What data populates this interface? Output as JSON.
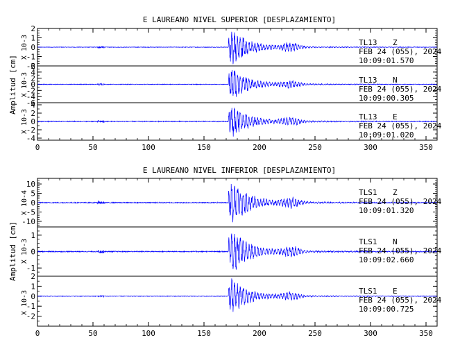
{
  "chart_data": [
    {
      "type": "line",
      "title": "E LAUREANO NIVEL SUPERIOR [DESPLAZAMIENTO]",
      "ylabel": "Amplitud [cm]",
      "xlim": [
        0,
        360
      ],
      "xticks": [
        0,
        50,
        100,
        150,
        200,
        250,
        300,
        350
      ],
      "line_color": "#0000ff",
      "panels": [
        {
          "scale_label": "X 10-3",
          "ylim": [
            -2,
            2
          ],
          "yticks": [
            "-2",
            "-1",
            "0",
            "1",
            "2"
          ],
          "station": "TL13",
          "component": "Z",
          "date": "FEB 24 (055), 2024",
          "time": "10:09:01.570",
          "event_start": 172,
          "peak": 2.0,
          "noise": 0.03
        },
        {
          "scale_label": "X 10-3",
          "ylim": [
            -6,
            6
          ],
          "yticks": [
            "-6",
            "-4",
            "-2",
            "0",
            "2",
            "4",
            "6"
          ],
          "station": "TL13",
          "component": "N",
          "date": "FEB 24 (055), 2024",
          "time": "10:09:00.305",
          "event_start": 172,
          "peak": 5.5,
          "noise": 0.1
        },
        {
          "scale_label": "X 10-3",
          "ylim": [
            -4.5,
            4.5
          ],
          "yticks": [
            "-4",
            "-2",
            "0",
            "2",
            "4"
          ],
          "station": "TL13",
          "component": "E",
          "date": "FEB 24 (055), 2024",
          "time": "10:09:01.020",
          "event_start": 172,
          "peak": 4.2,
          "noise": 0.1
        }
      ]
    },
    {
      "type": "line",
      "title": "E LAUREANO NIVEL INFERIOR [DESPLAZAMIENTO]",
      "ylabel": "Amplitud [cm]",
      "xlim": [
        0,
        360
      ],
      "xticks": [
        0,
        50,
        100,
        150,
        200,
        250,
        300,
        350
      ],
      "line_color": "#0000ff",
      "panels": [
        {
          "scale_label": "X 10-4",
          "ylim": [
            -13,
            13
          ],
          "yticks": [
            "-10",
            "-5",
            "0",
            "5",
            "10"
          ],
          "station": "TLS1",
          "component": "Z",
          "date": "FEB 24 (055), 2024",
          "time": "10:09:01.320",
          "event_start": 172,
          "peak": 12,
          "noise": 0.25
        },
        {
          "scale_label": "X 10-3",
          "ylim": [
            -1.5,
            1.5
          ],
          "yticks": [
            "-1",
            "0",
            "1"
          ],
          "station": "TLS1",
          "component": "N",
          "date": "FEB 24 (055), 2024",
          "time": "10:09:02.660",
          "event_start": 172,
          "peak": 1.4,
          "noise": 0.03
        },
        {
          "scale_label": "X 10-3",
          "ylim": [
            -3,
            2
          ],
          "yticks": [
            "-2",
            "-1",
            "0",
            "1",
            "2"
          ],
          "station": "TLS1",
          "component": "E",
          "date": "FEB 24 (055), 2024",
          "time": "10:09:00.725",
          "event_start": 172,
          "peak": 1.8,
          "noise": 0.03
        }
      ]
    }
  ]
}
